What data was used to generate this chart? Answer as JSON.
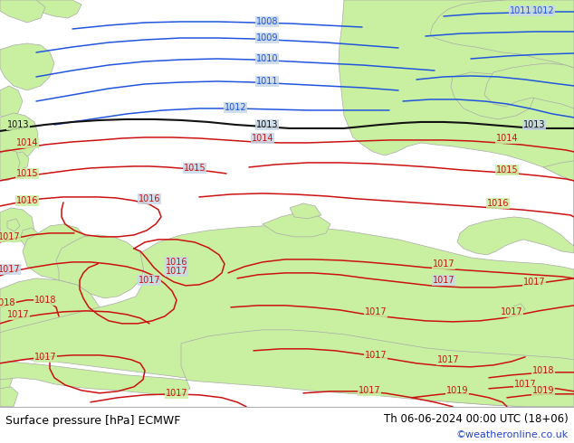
{
  "title_left": "Surface pressure [hPa] ECMWF",
  "title_right": "Th 06-06-2024 00:00 UTC (18+06)",
  "watermark": "©weatheronline.co.uk",
  "bg_color": "#c8d8e8",
  "land_color": "#c8f0a0",
  "coast_color": "#aaaaaa",
  "blue_color": "#2255dd",
  "red_color": "#cc1111",
  "black_color": "#111111",
  "label_fs": 7,
  "footer_fs": 9,
  "watermark_color": "#2244cc",
  "footer_bg": "#ffffff",
  "sep_color": "#888888"
}
